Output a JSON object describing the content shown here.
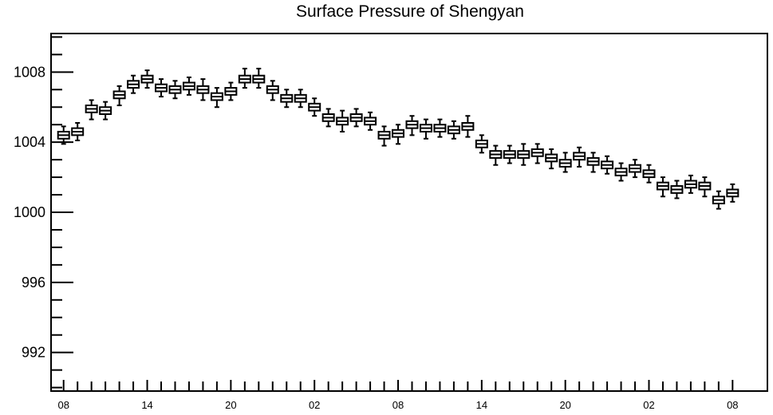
{
  "chart_data": {
    "type": "boxplot",
    "title": "Surface Pressure of Shengyan",
    "xlabel": "",
    "ylabel": "",
    "ylim": [
      989.8,
      1010.2
    ],
    "yticks": [
      992,
      996,
      1000,
      1004,
      1008
    ],
    "y_minor_step": 1,
    "xlim": [
      -0.9,
      50.5
    ],
    "xticks": [
      {
        "pos": 0,
        "label": "08"
      },
      {
        "pos": 6,
        "label": "14"
      },
      {
        "pos": 12,
        "label": "20"
      },
      {
        "pos": 18,
        "label": "02"
      },
      {
        "pos": 24,
        "label": "08"
      },
      {
        "pos": 30,
        "label": "14"
      },
      {
        "pos": 36,
        "label": "20"
      },
      {
        "pos": 42,
        "label": "02"
      },
      {
        "pos": 48,
        "label": "08"
      }
    ],
    "time_step_hours": 1,
    "grid": false,
    "legend": "none",
    "series": [
      {
        "median": [
          1004.4,
          1004.6,
          1005.9,
          1005.8,
          1006.7,
          1007.3,
          1007.6,
          1007.1,
          1007.0,
          1007.2,
          1007.0,
          1006.6,
          1006.9,
          1007.6,
          1007.6,
          1007.0,
          1006.5,
          1006.5,
          1006.0,
          1005.4,
          1005.2,
          1005.4,
          1005.2,
          1004.4,
          1004.5,
          1005.0,
          1004.8,
          1004.8,
          1004.7,
          1004.9,
          1003.9,
          1003.3,
          1003.3,
          1003.3,
          1003.4,
          1003.1,
          1002.8,
          1003.2,
          1002.9,
          1002.7,
          1002.3,
          1002.5,
          1002.2,
          1001.5,
          1001.3,
          1001.6,
          1001.5,
          1000.7,
          1001.1
        ],
        "q1": [
          1004.2,
          1004.4,
          1005.7,
          1005.6,
          1006.5,
          1007.1,
          1007.4,
          1006.9,
          1006.8,
          1007.0,
          1006.8,
          1006.4,
          1006.7,
          1007.4,
          1007.4,
          1006.8,
          1006.3,
          1006.3,
          1005.8,
          1005.2,
          1005.0,
          1005.2,
          1005.0,
          1004.2,
          1004.3,
          1004.8,
          1004.6,
          1004.6,
          1004.5,
          1004.7,
          1003.7,
          1003.1,
          1003.1,
          1003.1,
          1003.2,
          1002.9,
          1002.6,
          1003.0,
          1002.7,
          1002.5,
          1002.1,
          1002.3,
          1002.0,
          1001.3,
          1001.1,
          1001.4,
          1001.3,
          1000.5,
          1000.9
        ],
        "q3": [
          1004.6,
          1004.8,
          1006.1,
          1006.0,
          1006.9,
          1007.5,
          1007.8,
          1007.3,
          1007.2,
          1007.4,
          1007.2,
          1006.8,
          1007.1,
          1007.8,
          1007.8,
          1007.2,
          1006.7,
          1006.7,
          1006.2,
          1005.6,
          1005.4,
          1005.6,
          1005.4,
          1004.6,
          1004.7,
          1005.2,
          1005.0,
          1005.0,
          1004.9,
          1005.1,
          1004.1,
          1003.5,
          1003.5,
          1003.5,
          1003.6,
          1003.3,
          1003.0,
          1003.4,
          1003.1,
          1002.9,
          1002.5,
          1002.7,
          1002.4,
          1001.7,
          1001.5,
          1001.8,
          1001.7,
          1000.9,
          1001.3
        ],
        "whisker_low": [
          1003.9,
          1004.1,
          1005.3,
          1005.3,
          1006.1,
          1006.8,
          1007.1,
          1006.6,
          1006.5,
          1006.7,
          1006.4,
          1006.0,
          1006.4,
          1007.1,
          1007.1,
          1006.4,
          1006.0,
          1006.0,
          1005.5,
          1004.9,
          1004.6,
          1004.9,
          1004.7,
          1003.8,
          1003.9,
          1004.4,
          1004.2,
          1004.3,
          1004.2,
          1004.3,
          1003.4,
          1002.7,
          1002.8,
          1002.7,
          1002.8,
          1002.5,
          1002.3,
          1002.6,
          1002.3,
          1002.2,
          1001.8,
          1002.0,
          1001.7,
          1000.9,
          1000.8,
          1001.1,
          1000.9,
          1000.2,
          1000.6
        ],
        "whisker_high": [
          1004.9,
          1005.1,
          1006.4,
          1006.3,
          1007.2,
          1007.8,
          1008.1,
          1007.6,
          1007.5,
          1007.7,
          1007.6,
          1007.1,
          1007.4,
          1008.2,
          1008.2,
          1007.5,
          1007.0,
          1007.0,
          1006.5,
          1005.9,
          1005.8,
          1005.9,
          1005.7,
          1004.9,
          1005.0,
          1005.5,
          1005.3,
          1005.3,
          1005.2,
          1005.5,
          1004.4,
          1003.8,
          1003.8,
          1003.9,
          1003.9,
          1003.6,
          1003.4,
          1003.7,
          1003.4,
          1003.2,
          1002.8,
          1003.0,
          1002.7,
          1002.0,
          1001.8,
          1002.1,
          1002.0,
          1001.2,
          1001.6
        ]
      }
    ]
  }
}
